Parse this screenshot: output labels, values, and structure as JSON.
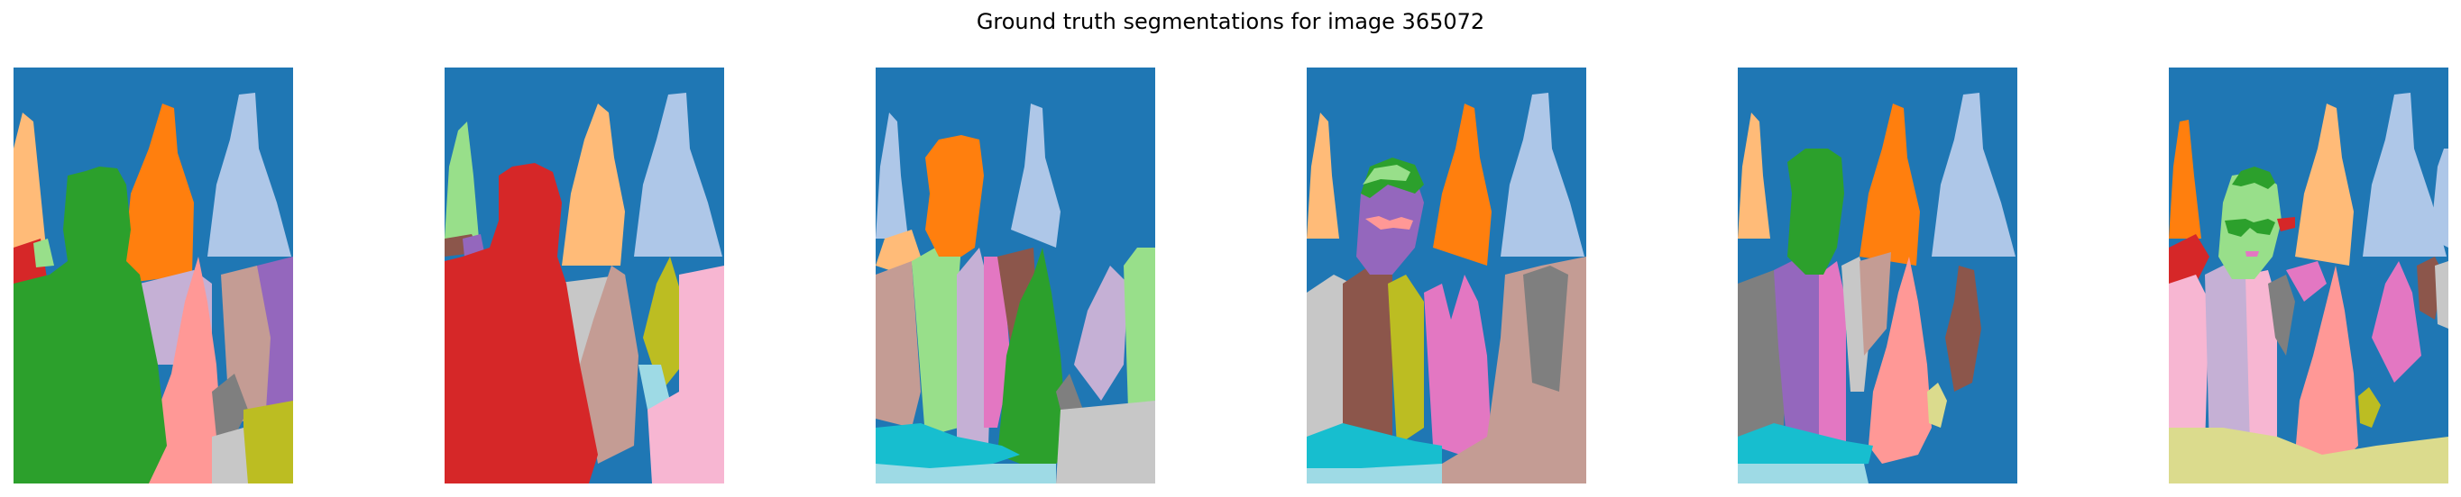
{
  "figure": {
    "title": "Ground truth segmentations for image 365072",
    "panel_count": 6
  },
  "palette": {
    "background": "#1f77b4",
    "orange": "#ff7f0e",
    "light_orange": "#ffbb78",
    "green": "#2ca02c",
    "light_green": "#98df8a",
    "red": "#d62728",
    "purple": "#9467bd",
    "light_purple": "#c5b0d5",
    "brown": "#8c564b",
    "light_brown": "#c49c94",
    "pink": "#e377c2",
    "light_pink": "#f7b6d2",
    "gray": "#7f7f7f",
    "light_gray": "#c7c7c7",
    "olive": "#bcbd22",
    "light_olive": "#dbdb8d",
    "cyan": "#17becf",
    "light_cyan": "#9edae5",
    "light_blue": "#aec7e8",
    "salmon": "#ff9896"
  }
}
